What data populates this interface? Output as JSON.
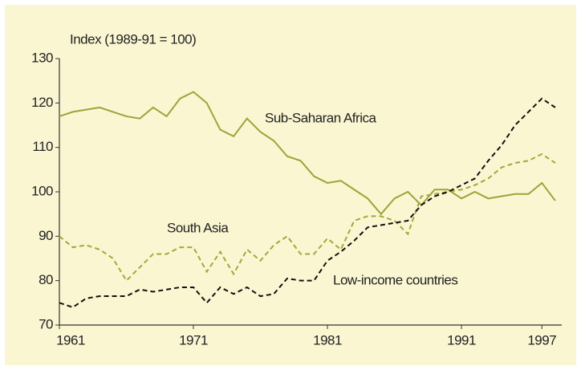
{
  "chart_data": {
    "type": "line",
    "ylabel": "Index (1989-91 = 100)",
    "x": [
      1961,
      1962,
      1963,
      1964,
      1965,
      1966,
      1967,
      1968,
      1969,
      1970,
      1971,
      1972,
      1973,
      1974,
      1975,
      1976,
      1977,
      1978,
      1979,
      1980,
      1981,
      1982,
      1983,
      1984,
      1985,
      1986,
      1987,
      1988,
      1989,
      1990,
      1991,
      1992,
      1993,
      1994,
      1995,
      1996,
      1997,
      1998
    ],
    "series": [
      {
        "name": "Sub-Saharan Africa",
        "color": "#9ea33a",
        "dash": false,
        "values": [
          117,
          118,
          118.5,
          119,
          118,
          117,
          116.5,
          119,
          117,
          121,
          122.5,
          120,
          114,
          112.5,
          116.5,
          113.5,
          111.5,
          108,
          107,
          103.5,
          102,
          102.5,
          100.5,
          98.5,
          95,
          98.5,
          100,
          97,
          100.5,
          100.5,
          98.5,
          100,
          98.5,
          99,
          99.5,
          99.5,
          102,
          98
        ]
      },
      {
        "name": "South Asia",
        "color": "#a6a63c",
        "dash": true,
        "values": [
          90,
          87.5,
          88,
          87,
          85,
          80,
          83,
          86,
          86,
          87.5,
          87.5,
          82,
          86.5,
          81.5,
          87,
          84.5,
          88,
          90,
          86,
          86,
          89.5,
          87,
          93.5,
          94.5,
          94.5,
          93.5,
          90.5,
          99,
          99.5,
          100,
          100.5,
          101.5,
          103,
          105.5,
          106.5,
          107,
          108.5,
          106.5
        ]
      },
      {
        "name": "Low-income countries",
        "color": "#111111",
        "dash": true,
        "values": [
          75,
          74,
          76,
          76.5,
          76.5,
          76.5,
          78,
          77.5,
          78,
          78.5,
          78.5,
          75,
          78.5,
          77,
          78.5,
          76.5,
          77,
          80.5,
          80,
          80,
          84.5,
          86.5,
          89,
          92,
          92.5,
          93,
          93.5,
          97,
          99,
          100,
          101.5,
          103,
          107,
          110.5,
          115,
          118,
          121,
          119
        ]
      }
    ],
    "xlim": [
      1961,
      1999.5
    ],
    "xticks": [
      1961,
      1971,
      1981,
      1991,
      1997
    ],
    "ylim": [
      70,
      130
    ],
    "yticks": [
      70,
      80,
      90,
      100,
      110,
      120,
      130
    ]
  }
}
